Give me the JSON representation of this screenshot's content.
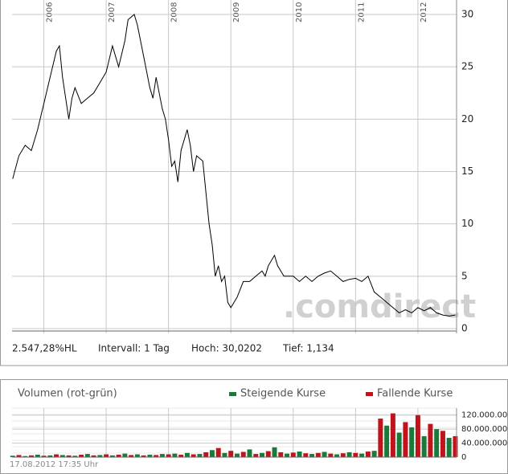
{
  "chart_data": [
    {
      "type": "line",
      "series": [
        {
          "color": "#000000",
          "x": [
            2005.5,
            2005.6,
            2005.7,
            2005.8,
            2005.9,
            2006.0,
            2006.1,
            2006.2,
            2006.25,
            2006.3,
            2006.4,
            2006.45,
            2006.5,
            2006.6,
            2006.7,
            2006.8,
            2006.9,
            2007.0,
            2007.1,
            2007.2,
            2007.3,
            2007.35,
            2007.45,
            2007.5,
            2007.6,
            2007.7,
            2007.75,
            2007.8,
            2007.9,
            2007.95,
            2008.0,
            2008.05,
            2008.1,
            2008.15,
            2008.2,
            2008.3,
            2008.35,
            2008.4,
            2008.45,
            2008.55,
            2008.6,
            2008.65,
            2008.7,
            2008.75,
            2008.8,
            2008.85,
            2008.9,
            2008.95,
            2009.0,
            2009.1,
            2009.2,
            2009.3,
            2009.4,
            2009.5,
            2009.55,
            2009.6,
            2009.7,
            2009.75,
            2009.85,
            2010.0,
            2010.1,
            2010.2,
            2010.3,
            2010.4,
            2010.5,
            2010.6,
            2010.7,
            2010.8,
            2010.9,
            2011.0,
            2011.1,
            2011.2,
            2011.3,
            2011.4,
            2011.5,
            2011.6,
            2011.7,
            2011.8,
            2011.9,
            2012.0,
            2012.1,
            2012.2,
            2012.3,
            2012.4,
            2012.5,
            2012.6
          ],
          "values": [
            14.3,
            16.5,
            17.5,
            17,
            19,
            21.5,
            24,
            26.5,
            27,
            24,
            20,
            22,
            23,
            21.5,
            22,
            22.5,
            23.5,
            24.5,
            27,
            25,
            27.5,
            29.5,
            30,
            29,
            26,
            23,
            22,
            24,
            21,
            20,
            18,
            15.5,
            16,
            14,
            17,
            19,
            17.5,
            15,
            16.5,
            16,
            13,
            10,
            8,
            5,
            6,
            4.5,
            5,
            2.5,
            2,
            3,
            4.5,
            4.5,
            5,
            5.5,
            5,
            6,
            7,
            6,
            5,
            5,
            4.5,
            5,
            4.5,
            5,
            5.3,
            5.5,
            5,
            4.5,
            4.7,
            4.8,
            4.5,
            5,
            3.5,
            3,
            2.5,
            2,
            1.5,
            1.8,
            1.5,
            2,
            1.7,
            2,
            1.5,
            1.3,
            1.2,
            1.3
          ]
        }
      ],
      "xlim": [
        2005.49,
        2012.62
      ],
      "xticks": [
        2006,
        2007,
        2008,
        2009,
        2010,
        2011,
        2012
      ],
      "ylim": [
        0,
        30
      ],
      "yticks": [
        0,
        5,
        10,
        15,
        20,
        25,
        30
      ],
      "grid": true,
      "watermark": ".comdirect",
      "stats": [
        "2.547,28%HL",
        "Intervall: 1 Tag",
        "Hoch: 30,0202",
        "Tief: 1,134"
      ]
    },
    {
      "type": "bar",
      "title": "Volumen (rot-grün)",
      "x": [
        2005.5,
        2005.6,
        2005.7,
        2005.8,
        2005.9,
        2006.0,
        2006.1,
        2006.2,
        2006.3,
        2006.4,
        2006.5,
        2006.6,
        2006.7,
        2006.8,
        2006.9,
        2007.0,
        2007.1,
        2007.2,
        2007.3,
        2007.4,
        2007.5,
        2007.6,
        2007.7,
        2007.8,
        2007.9,
        2008.0,
        2008.1,
        2008.2,
        2008.3,
        2008.4,
        2008.5,
        2008.6,
        2008.7,
        2008.8,
        2008.9,
        2009.0,
        2009.1,
        2009.2,
        2009.3,
        2009.4,
        2009.5,
        2009.6,
        2009.7,
        2009.8,
        2009.9,
        2010.0,
        2010.1,
        2010.2,
        2010.3,
        2010.4,
        2010.5,
        2010.6,
        2010.7,
        2010.8,
        2010.9,
        2011.0,
        2011.1,
        2011.2,
        2011.3,
        2011.4,
        2011.5,
        2011.6,
        2011.7,
        2011.8,
        2011.9,
        2012.0,
        2012.1,
        2012.2,
        2012.3,
        2012.4,
        2012.5,
        2012.6
      ],
      "series": [
        {
          "name": "Steigende Kurse",
          "color": "#1a7a3a",
          "values": [
            4000000,
            null,
            3000000,
            null,
            7000000,
            null,
            5000000,
            null,
            6000000,
            null,
            4000000,
            null,
            9000000,
            null,
            6000000,
            null,
            5000000,
            null,
            10000000,
            null,
            8000000,
            null,
            7000000,
            null,
            9000000,
            null,
            10000000,
            null,
            12000000,
            null,
            9000000,
            null,
            20000000,
            null,
            12000000,
            null,
            10000000,
            null,
            22000000,
            null,
            12000000,
            null,
            28000000,
            null,
            10000000,
            null,
            16000000,
            null,
            9000000,
            null,
            15000000,
            null,
            8000000,
            null,
            14000000,
            null,
            10000000,
            null,
            18000000,
            null,
            90000000,
            null,
            70000000,
            null,
            85000000,
            null,
            60000000,
            null,
            80000000,
            null,
            55000000,
            null
          ]
        },
        {
          "name": "Fallende Kurse",
          "color": "#c0141c",
          "values": [
            null,
            6000000,
            null,
            5000000,
            null,
            4000000,
            null,
            8000000,
            null,
            5000000,
            null,
            7000000,
            null,
            5000000,
            null,
            8000000,
            null,
            7000000,
            null,
            6000000,
            null,
            5000000,
            null,
            6000000,
            null,
            8000000,
            null,
            7000000,
            null,
            8000000,
            null,
            14000000,
            null,
            26000000,
            null,
            18000000,
            null,
            15000000,
            null,
            9000000,
            null,
            17000000,
            null,
            14000000,
            null,
            13000000,
            null,
            11000000,
            null,
            12000000,
            null,
            10000000,
            null,
            11000000,
            null,
            12000000,
            null,
            16000000,
            null,
            110000000,
            null,
            125000000,
            null,
            100000000,
            null,
            120000000,
            null,
            95000000,
            null,
            75000000,
            null,
            60000000
          ]
        }
      ],
      "xlim": [
        2005.49,
        2012.62
      ],
      "xticks": [
        2006,
        2007,
        2008,
        2009,
        2010,
        2011,
        2012
      ],
      "ylim": [
        0,
        140000000
      ],
      "yticks": [
        0,
        {
          "value": 40000000,
          "label": "40.000.000"
        },
        {
          "value": 80000000,
          "label": "80.000.000"
        },
        {
          "value": 120000000,
          "label": "120.000.000"
        }
      ],
      "grid": true,
      "timestamp": "17.08.2012 17:35 Uhr"
    }
  ]
}
